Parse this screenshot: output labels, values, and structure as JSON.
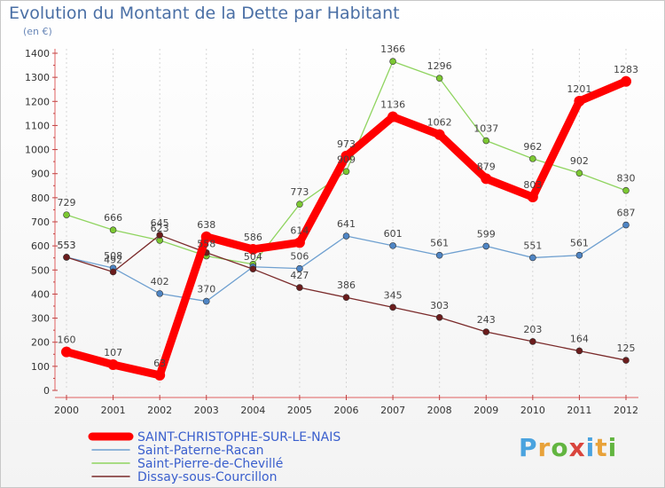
{
  "header": {
    "title": "Evolution du Montant de la Dette par Habitant",
    "subtitle": "(en €)"
  },
  "brand": {
    "letters": [
      "P",
      "r",
      "o",
      "x",
      "i",
      "t",
      "i"
    ],
    "colors": [
      "#4aa3df",
      "#e8a23a",
      "#62b540",
      "#d9453d",
      "#4aa3df",
      "#e8a23a",
      "#62b540"
    ]
  },
  "chart_data": {
    "type": "line",
    "x": [
      "2000",
      "2001",
      "2002",
      "2003",
      "2004",
      "2005",
      "2006",
      "2007",
      "2008",
      "2009",
      "2010",
      "2011",
      "2012"
    ],
    "ylim": [
      0,
      1400
    ],
    "yticks": [
      0,
      100,
      200,
      300,
      400,
      500,
      600,
      700,
      800,
      900,
      1000,
      1100,
      1200,
      1300,
      1400
    ],
    "grid": "vertical dashed",
    "legend_position": "bottom-left",
    "series": [
      {
        "name": "Saint-Pierre-de-Chevillé",
        "color": "#8fd45f",
        "marker": "#7cc832",
        "values": [
          729,
          666,
          623,
          558,
          524,
          773,
          909,
          1366,
          1296,
          1037,
          962,
          902,
          830
        ]
      },
      {
        "name": "Saint-Paterne-Racan",
        "color": "#6fa0d0",
        "marker": "#4f85c4",
        "values": [
          553,
          508,
          402,
          370,
          513,
          506,
          641,
          601,
          561,
          599,
          551,
          561,
          687
        ]
      },
      {
        "name": "Dissay-sous-Courcillon",
        "color": "#7a2a2a",
        "marker": "#6b1c1c",
        "values": [
          553,
          492,
          645,
          572,
          504,
          427,
          386,
          345,
          303,
          243,
          203,
          164,
          125
        ]
      },
      {
        "name": "SAINT-CHRISTOPHE-SUR-LE-NAIS",
        "color": "#ff0000",
        "marker": "#ff0000",
        "values": [
          160,
          107,
          63,
          638,
          586,
          614,
          973,
          1136,
          1062,
          879,
          803,
          1201,
          1283
        ]
      }
    ],
    "legend_order": [
      "SAINT-CHRISTOPHE-SUR-LE-NAIS",
      "Saint-Paterne-Racan",
      "Saint-Pierre-de-Chevillé",
      "Dissay-sous-Courcillon"
    ],
    "value_labels": [
      {
        "series": "Saint-Pierre-de-Chevillé",
        "labels": [
          "729",
          "666",
          "623",
          "558",
          "",
          "773",
          "909",
          "1366",
          "1296",
          "1037",
          "962",
          "902",
          "830"
        ]
      },
      {
        "series": "Saint-Paterne-Racan",
        "labels": [
          "553",
          "508",
          "402",
          "370",
          "",
          "506",
          "641",
          "601",
          "561",
          "599",
          "551",
          "561",
          "687"
        ]
      },
      {
        "series": "Dissay-sous-Courcillon",
        "labels": [
          "553",
          "492",
          "645",
          "",
          "504",
          "427",
          "386",
          "345",
          "303",
          "243",
          "203",
          "164",
          "125"
        ]
      },
      {
        "series": "SAINT-CHRISTOPHE-SUR-LE-NAIS",
        "labels": [
          "160",
          "107",
          "63",
          "638",
          "586",
          "614",
          "973",
          "1136",
          "1062",
          "879",
          "803",
          "1201",
          "1283"
        ]
      }
    ]
  }
}
